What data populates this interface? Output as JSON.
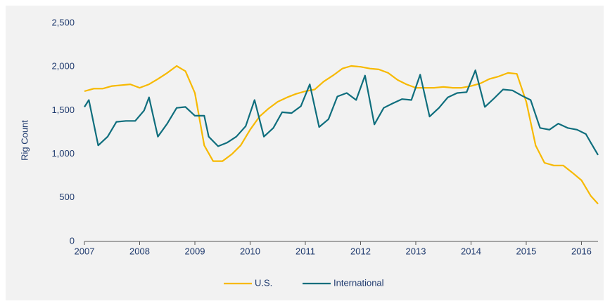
{
  "chart_data": {
    "type": "line",
    "ylabel": "Rig Count",
    "xlim": [
      2007,
      2016.3
    ],
    "xticks": [
      2007,
      2008,
      2009,
      2010,
      2011,
      2012,
      2013,
      2014,
      2015,
      2016
    ],
    "ylim": [
      0,
      2500
    ],
    "yticks": [
      0,
      {
        "value": 500,
        "label": "500"
      },
      {
        "value": 1000,
        "label": "1,000"
      },
      {
        "value": 1500,
        "label": "1,500"
      },
      {
        "value": 2000,
        "label": "2,000"
      },
      {
        "value": 2500,
        "label": "2,500"
      }
    ],
    "legend": "bottom",
    "series": [
      {
        "name": "U.S.",
        "color": "#f7b900",
        "x": [
          2007.0,
          2007.17,
          2007.33,
          2007.5,
          2007.67,
          2007.83,
          2008.0,
          2008.17,
          2008.33,
          2008.5,
          2008.67,
          2008.83,
          2009.0,
          2009.17,
          2009.33,
          2009.5,
          2009.67,
          2009.83,
          2010.0,
          2010.17,
          2010.33,
          2010.5,
          2010.67,
          2010.83,
          2011.0,
          2011.17,
          2011.33,
          2011.5,
          2011.67,
          2011.83,
          2012.0,
          2012.17,
          2012.33,
          2012.5,
          2012.67,
          2012.83,
          2013.0,
          2013.17,
          2013.33,
          2013.5,
          2013.67,
          2013.83,
          2014.0,
          2014.17,
          2014.33,
          2014.5,
          2014.67,
          2014.83,
          2015.0,
          2015.17,
          2015.33,
          2015.5,
          2015.67,
          2015.83,
          2016.0,
          2016.17,
          2016.3
        ],
        "values": [
          1720,
          1750,
          1750,
          1780,
          1790,
          1800,
          1760,
          1800,
          1860,
          1930,
          2010,
          1950,
          1700,
          1100,
          920,
          920,
          1000,
          1100,
          1280,
          1430,
          1520,
          1600,
          1650,
          1690,
          1720,
          1740,
          1830,
          1900,
          1980,
          2010,
          2000,
          1980,
          1970,
          1930,
          1850,
          1800,
          1760,
          1760,
          1760,
          1770,
          1760,
          1760,
          1780,
          1810,
          1860,
          1890,
          1930,
          1920,
          1600,
          1100,
          900,
          870,
          870,
          790,
          700,
          520,
          430
        ]
      },
      {
        "name": "International",
        "color": "#0f6e7d",
        "x": [
          2007.0,
          2007.08,
          2007.25,
          2007.42,
          2007.58,
          2007.75,
          2007.92,
          2008.08,
          2008.17,
          2008.33,
          2008.5,
          2008.67,
          2008.83,
          2009.0,
          2009.17,
          2009.25,
          2009.42,
          2009.58,
          2009.75,
          2009.92,
          2010.08,
          2010.25,
          2010.42,
          2010.58,
          2010.75,
          2010.92,
          2011.08,
          2011.25,
          2011.42,
          2011.58,
          2011.75,
          2011.92,
          2012.08,
          2012.25,
          2012.42,
          2012.58,
          2012.75,
          2012.92,
          2013.08,
          2013.25,
          2013.42,
          2013.58,
          2013.75,
          2013.92,
          2014.08,
          2014.25,
          2014.42,
          2014.58,
          2014.75,
          2014.92,
          2015.08,
          2015.25,
          2015.42,
          2015.58,
          2015.75,
          2015.92,
          2016.08,
          2016.17,
          2016.3
        ],
        "values": [
          1540,
          1620,
          1100,
          1200,
          1370,
          1380,
          1380,
          1500,
          1650,
          1200,
          1350,
          1530,
          1540,
          1440,
          1440,
          1200,
          1090,
          1130,
          1200,
          1320,
          1620,
          1200,
          1300,
          1480,
          1470,
          1550,
          1800,
          1310,
          1400,
          1660,
          1700,
          1620,
          1900,
          1340,
          1530,
          1580,
          1630,
          1620,
          1910,
          1430,
          1530,
          1650,
          1700,
          1710,
          1960,
          1540,
          1640,
          1740,
          1730,
          1670,
          1620,
          1300,
          1280,
          1350,
          1300,
          1280,
          1230,
          1130,
          990
        ]
      }
    ]
  }
}
